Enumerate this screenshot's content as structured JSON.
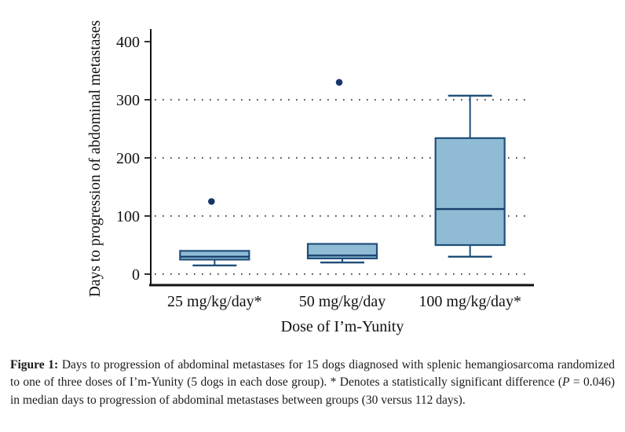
{
  "figure": {
    "caption": {
      "segments": [
        {
          "text": "Figure 1: ",
          "bold": true
        },
        {
          "text": "Days to progression of abdominal metastases for 15 dogs diagnosed with splenic hemangiosarcoma randomized to one of three doses of I’m-Yunity (5 dogs in each dose group). * Denotes a statistically significant difference ("
        },
        {
          "text": "P",
          "italic": true
        },
        {
          "text": " = 0.046) in median days to progression of abdominal metastases between groups (30 versus 112 days)."
        }
      ]
    }
  },
  "chart_data": {
    "type": "boxplot",
    "title": "",
    "xlabel": "Dose of I’m-Yunity",
    "ylabel": "Days to progression of abdominal metastases",
    "ylim": [
      0,
      430
    ],
    "yticks": [
      0,
      100,
      200,
      300,
      400
    ],
    "grid_dotted_at": [
      0,
      100,
      200,
      300
    ],
    "legend": "none",
    "categories": [
      "25 mg/kg/day*",
      "50 mg/kg/day",
      "100 mg/kg/day*"
    ],
    "series": [
      {
        "name": "25 mg/kg/day*",
        "whisker_low": 15,
        "q1": 25,
        "median": 30,
        "q3": 40,
        "whisker_high": 40,
        "outliers": [
          125
        ]
      },
      {
        "name": "50 mg/kg/day",
        "whisker_low": 20,
        "q1": 27,
        "median": 32,
        "q3": 52,
        "whisker_high": 52,
        "outliers": [
          330
        ]
      },
      {
        "name": "100 mg/kg/day*",
        "whisker_low": 30,
        "q1": 50,
        "median": 112,
        "q3": 234,
        "whisker_high": 307,
        "outliers": []
      }
    ],
    "colors": {
      "box_fill": "#8fbcd4",
      "box_stroke": "#1f4e79",
      "median_line": "#1b4370",
      "outlier": "#17356b",
      "grid_dots": "#3c3c3c",
      "axis": "#101010",
      "text": "#111111"
    }
  }
}
